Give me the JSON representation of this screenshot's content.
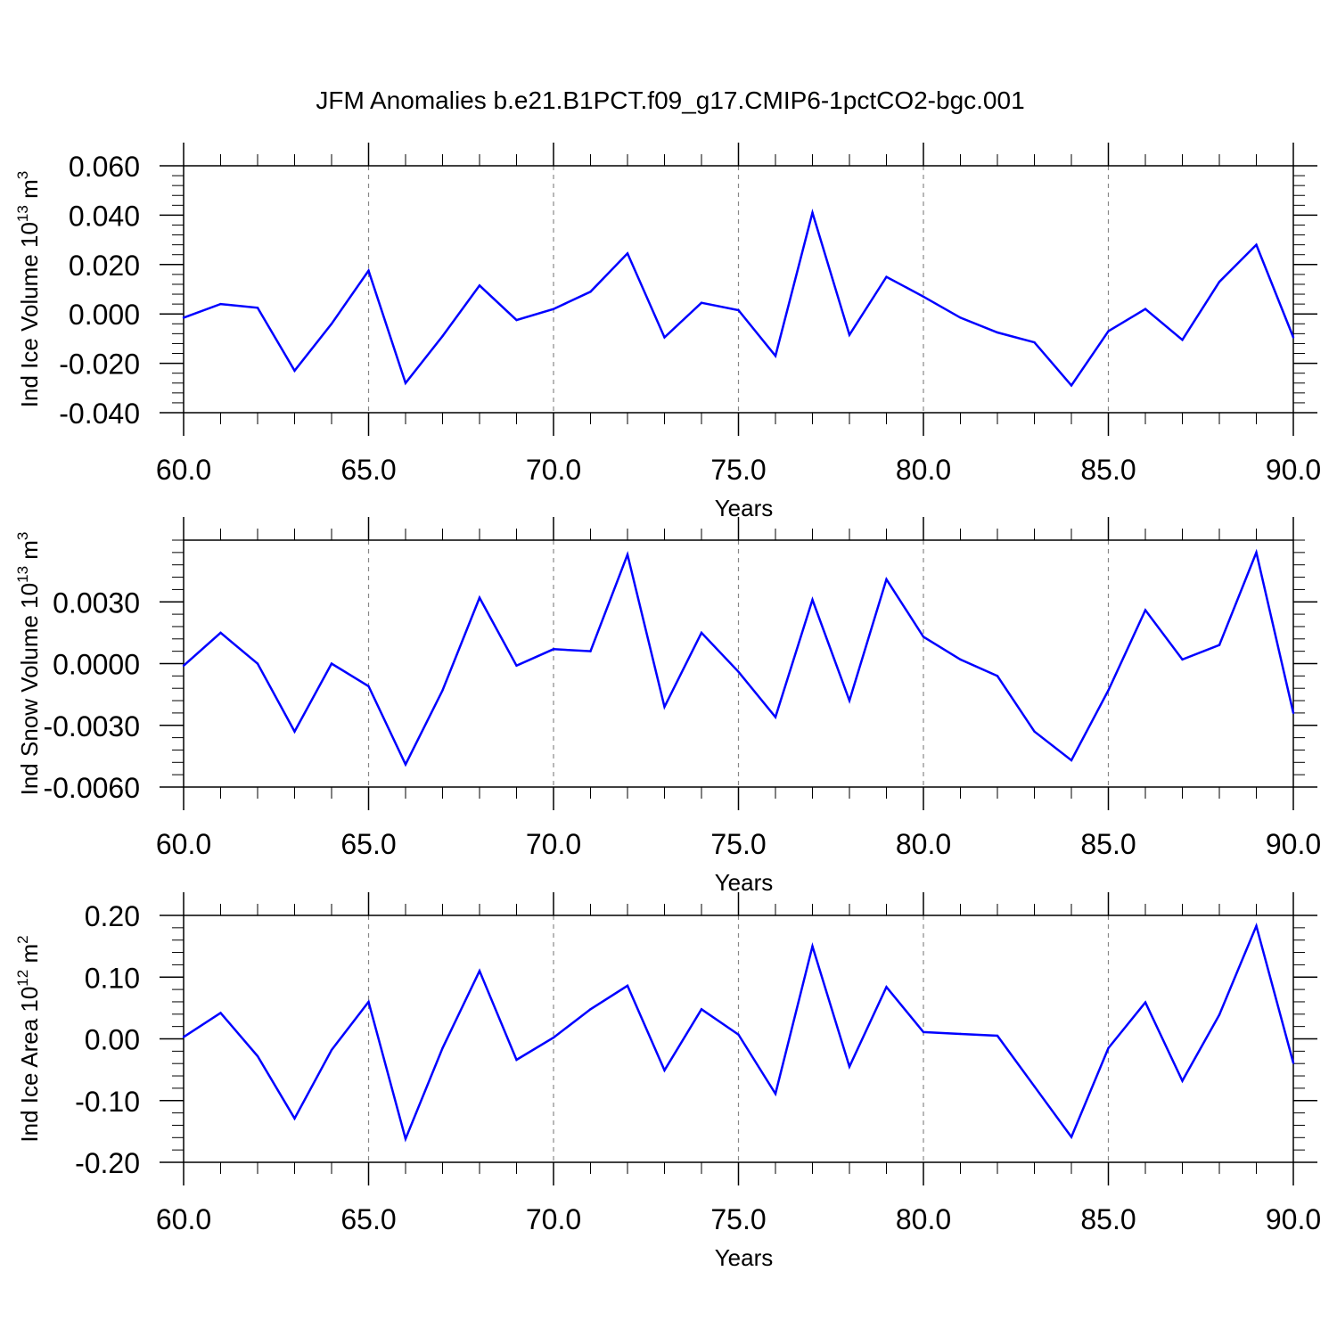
{
  "title": "JFM Anomalies b.e21.B1PCT.f09_g17.CMIP6-1pctCO2-bgc.001",
  "colors": {
    "line": "#0000ff",
    "axis": "#000000",
    "grid": "#888888"
  },
  "chart_data": [
    {
      "type": "line",
      "xlabel": "Years",
      "ylabel": "Ind Ice Volume 10",
      "ylabel_exp": "13",
      "ylabel_unit": " m",
      "ylabel_unit_exp": "3",
      "xlim": [
        60,
        90
      ],
      "ylim": [
        -0.04,
        0.06
      ],
      "xticks": [
        60,
        65,
        70,
        75,
        80,
        85,
        90
      ],
      "xtick_labels": [
        "60.0",
        "65.0",
        "70.0",
        "75.0",
        "80.0",
        "85.0",
        "90.0"
      ],
      "yticks": [
        -0.04,
        -0.02,
        0,
        0.02,
        0.04,
        0.06
      ],
      "ytick_labels": [
        "-0.040",
        "-0.020",
        "0.000",
        "0.020",
        "0.040",
        "0.060"
      ],
      "vgrid": [
        65,
        70,
        75,
        80,
        85
      ],
      "series": [
        {
          "x": [
            60,
            61,
            62,
            63,
            64,
            65,
            66,
            67,
            68,
            69,
            70,
            71,
            72,
            73,
            74,
            75,
            76,
            77,
            78,
            79,
            80,
            81,
            82,
            83,
            84,
            85,
            86,
            87,
            88,
            89,
            90
          ],
          "values": [
            -0.0015,
            0.004,
            0.0025,
            -0.023,
            -0.004,
            0.0175,
            -0.028,
            -0.009,
            0.0115,
            -0.0025,
            0.002,
            0.009,
            0.0245,
            -0.0095,
            0.0045,
            0.0015,
            -0.017,
            0.041,
            -0.0085,
            0.015,
            0.007,
            -0.0015,
            -0.0075,
            -0.0115,
            -0.029,
            -0.007,
            0.002,
            -0.0105,
            0.013,
            0.028,
            -0.0095
          ]
        }
      ]
    },
    {
      "type": "line",
      "xlabel": "Years",
      "ylabel": "Ind Snow Volume 10",
      "ylabel_exp": "13",
      "ylabel_unit": " m",
      "ylabel_unit_exp": "3",
      "xlim": [
        60,
        90
      ],
      "ylim": [
        -0.006,
        0.006
      ],
      "xticks": [
        60,
        65,
        70,
        75,
        80,
        85,
        90
      ],
      "xtick_labels": [
        "60.0",
        "65.0",
        "70.0",
        "75.0",
        "80.0",
        "85.0",
        "90.0"
      ],
      "yticks": [
        -0.006,
        -0.003,
        0,
        0.003
      ],
      "ytick_labels": [
        "-0.0060",
        "-0.0030",
        "0.0000",
        "0.0030"
      ],
      "vgrid": [
        65,
        70,
        75,
        80,
        85
      ],
      "series": [
        {
          "x": [
            60,
            61,
            62,
            63,
            64,
            65,
            66,
            67,
            68,
            69,
            70,
            71,
            72,
            73,
            74,
            75,
            76,
            77,
            78,
            79,
            80,
            81,
            82,
            83,
            84,
            85,
            86,
            87,
            88,
            89,
            90
          ],
          "values": [
            -0.0001,
            0.0015,
            0,
            -0.0033,
            0,
            -0.0011,
            -0.0049,
            -0.0013,
            0.0032,
            -0.0001,
            0.0007,
            0.0006,
            0.0053,
            -0.0021,
            0.0015,
            -0.0004,
            -0.0026,
            0.0031,
            -0.0018,
            0.0041,
            0.0013,
            0.0002,
            -0.0006,
            -0.0033,
            -0.0047,
            -0.0013,
            0.0026,
            0.0002,
            0.0009,
            0.0054,
            -0.0024
          ]
        }
      ]
    },
    {
      "type": "line",
      "xlabel": "Years",
      "ylabel": "Ind Ice Area 10",
      "ylabel_exp": "12",
      "ylabel_unit": " m",
      "ylabel_unit_exp": "2",
      "xlim": [
        60,
        90
      ],
      "ylim": [
        -0.2,
        0.2
      ],
      "xticks": [
        60,
        65,
        70,
        75,
        80,
        85,
        90
      ],
      "xtick_labels": [
        "60.0",
        "65.0",
        "70.0",
        "75.0",
        "80.0",
        "85.0",
        "90.0"
      ],
      "yticks": [
        -0.2,
        -0.1,
        0,
        0.1,
        0.2
      ],
      "ytick_labels": [
        "-0.20",
        "-0.10",
        "0.00",
        "0.10",
        "0.20"
      ],
      "vgrid": [
        65,
        70,
        75,
        80,
        85
      ],
      "series": [
        {
          "x": [
            60,
            61,
            62,
            63,
            64,
            65,
            66,
            67,
            68,
            69,
            70,
            71,
            72,
            73,
            74,
            75,
            76,
            77,
            78,
            79,
            80,
            81,
            82,
            83,
            84,
            85,
            86,
            87,
            88,
            89,
            90
          ],
          "values": [
            0.003,
            0.042,
            -0.028,
            -0.129,
            -0.018,
            0.06,
            -0.162,
            -0.015,
            0.11,
            -0.034,
            0.002,
            0.048,
            0.086,
            -0.051,
            0.048,
            0.007,
            -0.089,
            0.15,
            -0.045,
            0.084,
            0.011,
            0.008,
            0.005,
            -0.077,
            -0.159,
            -0.015,
            0.059,
            -0.068,
            0.039,
            0.183,
            -0.039
          ]
        }
      ]
    }
  ]
}
